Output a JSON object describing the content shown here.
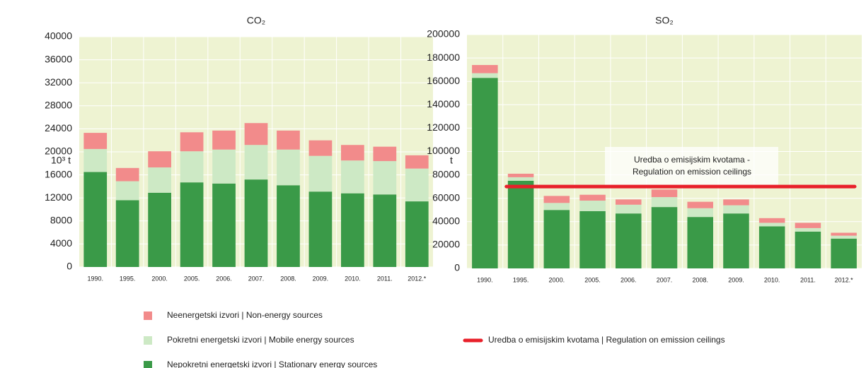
{
  "chart_data": [
    {
      "type": "bar",
      "stacked": true,
      "title": "CO₂",
      "y_label": "10³ t",
      "categories": [
        "1990.",
        "1995.",
        "2000.",
        "2005.",
        "2006.",
        "2007.",
        "2008.",
        "2009.",
        "2010.",
        "2011.",
        "2012.*"
      ],
      "series": [
        {
          "name": "Nepokretni energetski izvori | Stationary energy sources",
          "color": "#3a9a48",
          "values": [
            16500,
            11600,
            12900,
            14700,
            14500,
            15200,
            14200,
            13100,
            12800,
            12600,
            11400
          ]
        },
        {
          "name": "Pokretni energetski izvori | Mobile energy sources",
          "color": "#cde9c5",
          "values": [
            4000,
            3300,
            4400,
            5400,
            5900,
            6000,
            6200,
            6200,
            5700,
            5800,
            5700
          ]
        },
        {
          "name": "Neenergetski izvori | Non-energy sources",
          "color": "#f28b8b",
          "values": [
            2800,
            2300,
            2800,
            3300,
            3300,
            3800,
            3300,
            2700,
            2700,
            2500,
            2300
          ]
        }
      ],
      "ylim": [
        0,
        40000
      ],
      "yticks": [
        0,
        4000,
        8000,
        12000,
        16000,
        20000,
        24000,
        28000,
        32000,
        36000,
        40000
      ],
      "grid": true
    },
    {
      "type": "bar",
      "stacked": true,
      "title": "SO₂",
      "y_label": "t",
      "categories": [
        "1990.",
        "1995.",
        "2000.",
        "2005.",
        "2006.",
        "2007.",
        "2008.",
        "2009.",
        "2010.",
        "2011.",
        "2012.*"
      ],
      "series": [
        {
          "color": "#3a9a48",
          "values": [
            163000,
            75000,
            50000,
            49000,
            47000,
            52500,
            44000,
            47000,
            36000,
            31500,
            25500
          ]
        },
        {
          "color": "#cde9c5",
          "values": [
            4000,
            3000,
            6000,
            9000,
            7500,
            8500,
            7500,
            7000,
            3000,
            3000,
            2500
          ]
        },
        {
          "color": "#f28b8b",
          "values": [
            7000,
            3000,
            6000,
            5000,
            4500,
            6500,
            5500,
            5000,
            4000,
            4500,
            2500
          ]
        }
      ],
      "ceiling": {
        "name": "Uredba o emisijskim kvotama | Regulation on emission ceilings",
        "value": 70000,
        "color": "#e8202a",
        "annotation": [
          "Uredba o emisijskim kvotama -",
          "Regulation on emission ceilings"
        ]
      },
      "ylim": [
        0,
        200000
      ],
      "yticks": [
        0,
        20000,
        40000,
        60000,
        80000,
        100000,
        120000,
        140000,
        160000,
        180000,
        200000
      ],
      "grid": true
    }
  ]
}
